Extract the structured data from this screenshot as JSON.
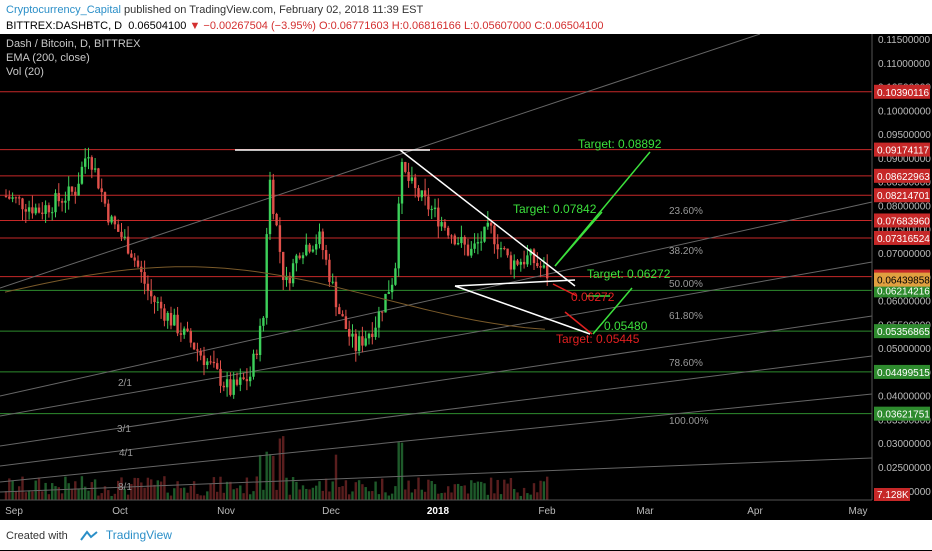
{
  "header": {
    "author": "Cryptocurrency_Capital",
    "published_text": "published on TradingView.com, February 02, 2018 11:39 EST"
  },
  "ticker": {
    "symbol": "BITTREX:DASHBTC, D",
    "last": "0.06504100",
    "change": "−0.00267504 (−3.95%)",
    "open": "O:0.06771603",
    "high": "H:0.06816166",
    "low": "L:0.05607000",
    "close": "C:0.06504100"
  },
  "legend": {
    "pair": "Dash / Bitcoin, D, BITTREX",
    "ema": "EMA (200, close)",
    "vol": "Vol (20)"
  },
  "price_axis": {
    "ticks": [
      "0.11500000",
      "0.11000000",
      "0.10500000",
      "0.10000000",
      "0.09500000",
      "0.09000000",
      "0.08500000",
      "0.08000000",
      "0.07500000",
      "0.07000000",
      "0.06500000",
      "0.06000000",
      "0.05500000",
      "0.05000000",
      "0.04500000",
      "0.04000000",
      "0.03500000",
      "0.03000000",
      "0.02500000",
      "0.02000000"
    ],
    "levels_red": [
      "0.10390116",
      "0.09174117",
      "0.08622963",
      "0.08214701",
      "0.07683960",
      "0.07316524",
      "0.06504100"
    ],
    "levels_green": [
      "0.06214216",
      "0.05356865",
      "0.04499515",
      "0.03621751"
    ],
    "ema_label": "0.06439858",
    "vol_label": "7.128K"
  },
  "time_axis": {
    "labels": [
      "Sep",
      "Oct",
      "Nov",
      "Dec",
      "2018",
      "Feb",
      "Mar",
      "Apr",
      "May"
    ]
  },
  "fib": [
    "23.60%",
    "38.20%",
    "50.00%",
    "61.80%",
    "78.60%",
    "100.00%"
  ],
  "gann": [
    "2/1",
    "3/1",
    "4/1",
    "8/1"
  ],
  "targets": {
    "t1": "Target: 0.08892",
    "t2": "Target: 0.07842",
    "t3": "Target: 0.06272",
    "t4": "0.05480",
    "r1": "0.06272",
    "r2": "Target: 0.05445"
  },
  "footer": {
    "created_with": "Created with",
    "brand": "TradingView"
  },
  "colors": {
    "up": "#26a69a",
    "down": "#ef5350",
    "accent_green": "#3ce03c",
    "accent_red": "#e02020"
  }
}
